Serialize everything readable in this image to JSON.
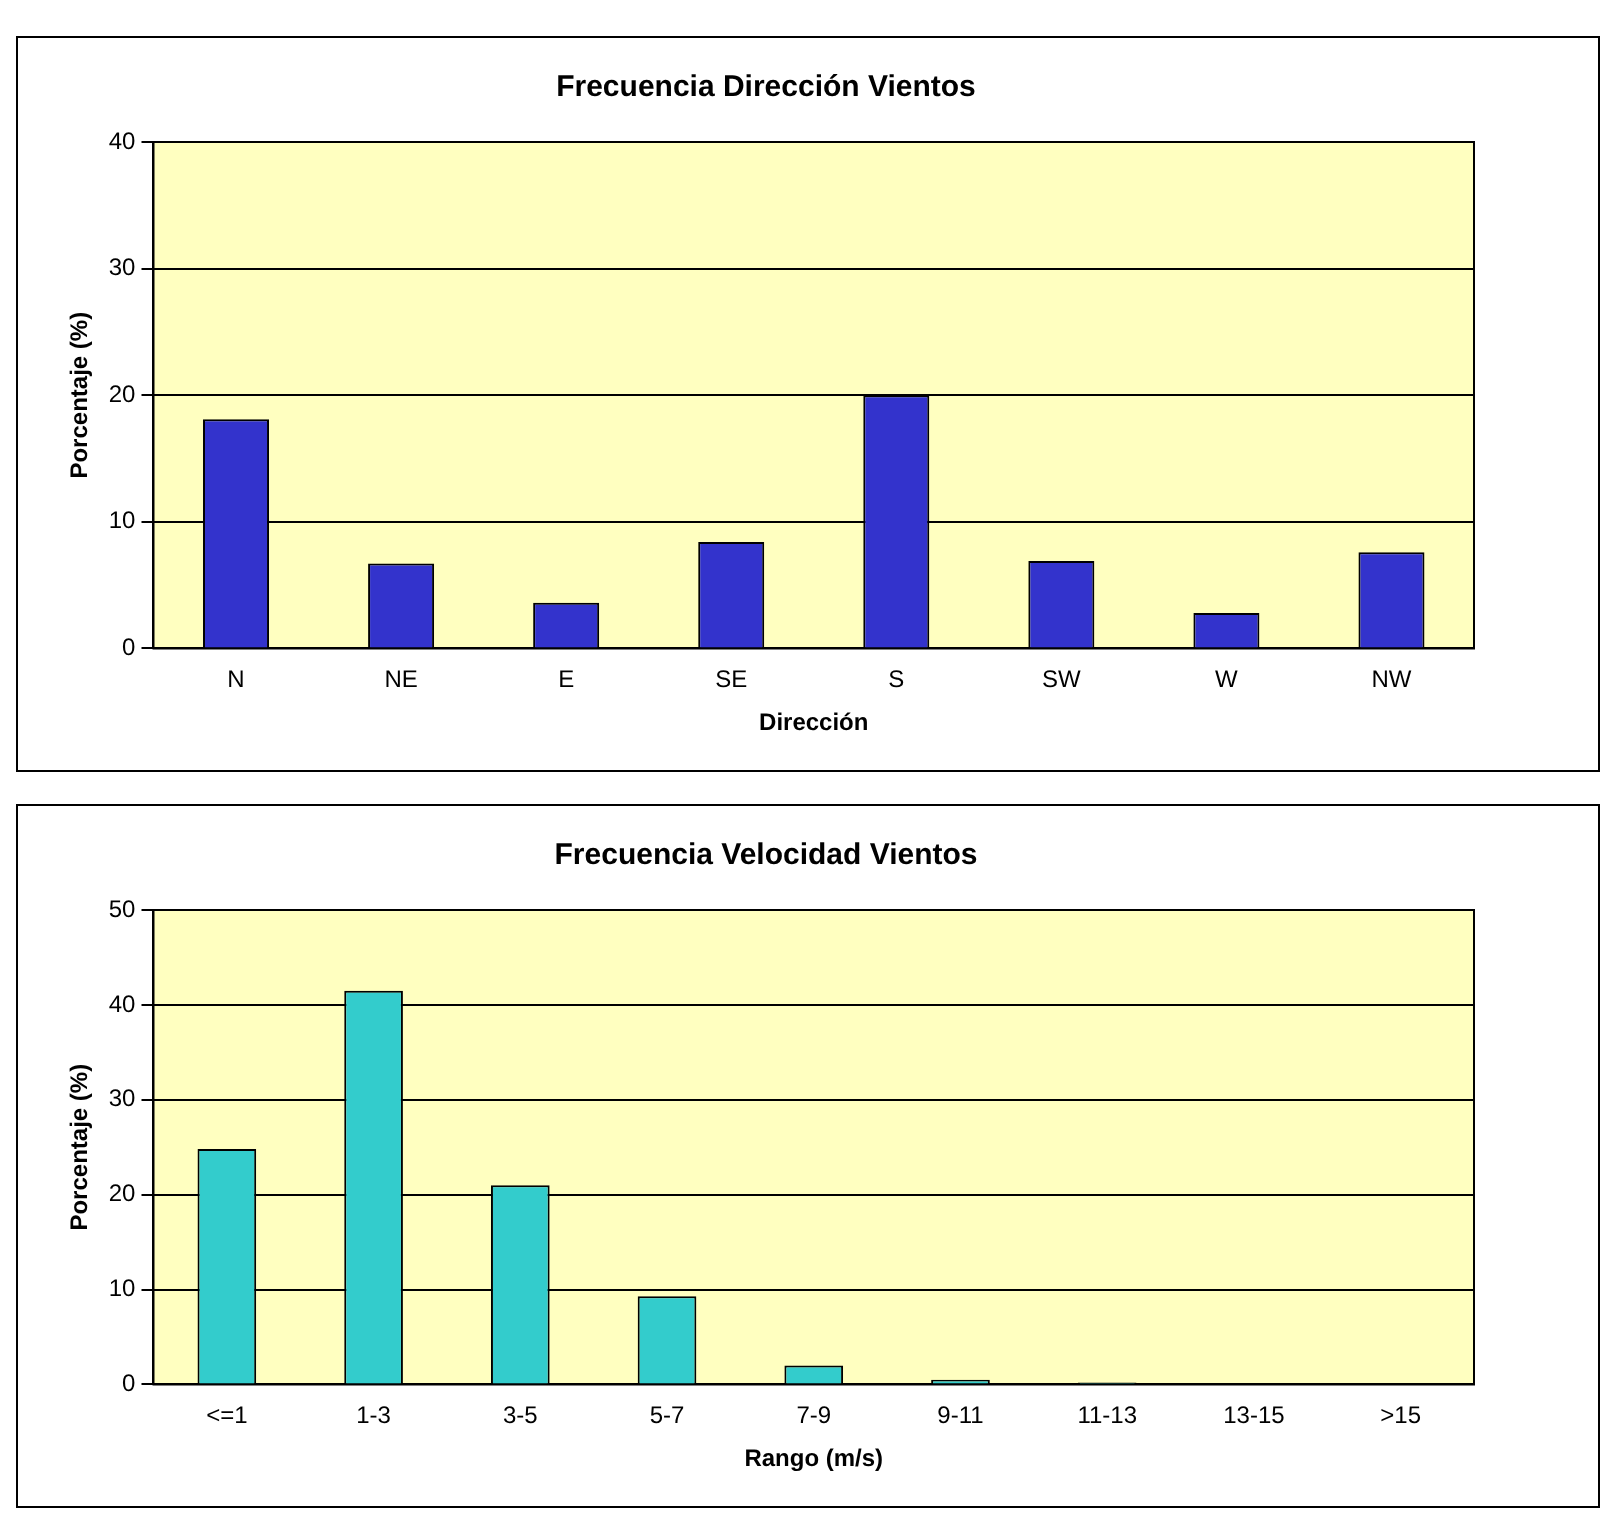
{
  "chart_data": [
    {
      "type": "bar",
      "title": "Frecuencia Dirección Vientos",
      "xlabel": "Dirección",
      "ylabel": "Porcentaje (%)",
      "categories": [
        "N",
        "NE",
        "E",
        "SE",
        "S",
        "SW",
        "W",
        "NW"
      ],
      "values": [
        18.1,
        6.7,
        3.6,
        8.4,
        20,
        6.9,
        2.8,
        7.6
      ],
      "color": "#3333cc",
      "ylim": [
        0,
        40
      ],
      "yticks": [
        0,
        10,
        20,
        30,
        40
      ],
      "grid": "y",
      "legend": false
    },
    {
      "type": "bar",
      "title": "Frecuencia Velocidad Vientos",
      "xlabel": "Rango (m/s)",
      "ylabel": "Porcentaje (%)",
      "categories": [
        "<=1",
        "1-3",
        "3-5",
        "5-7",
        "7-9",
        "9-11",
        "11-13",
        "13-15",
        ">15"
      ],
      "values": [
        24.8,
        41.5,
        21,
        9.3,
        2,
        0.5,
        0.2,
        0,
        0
      ],
      "color": "#33cccc",
      "ylim": [
        0,
        50
      ],
      "yticks": [
        0,
        10,
        20,
        30,
        40,
        50
      ],
      "grid": "y",
      "legend": false
    }
  ]
}
